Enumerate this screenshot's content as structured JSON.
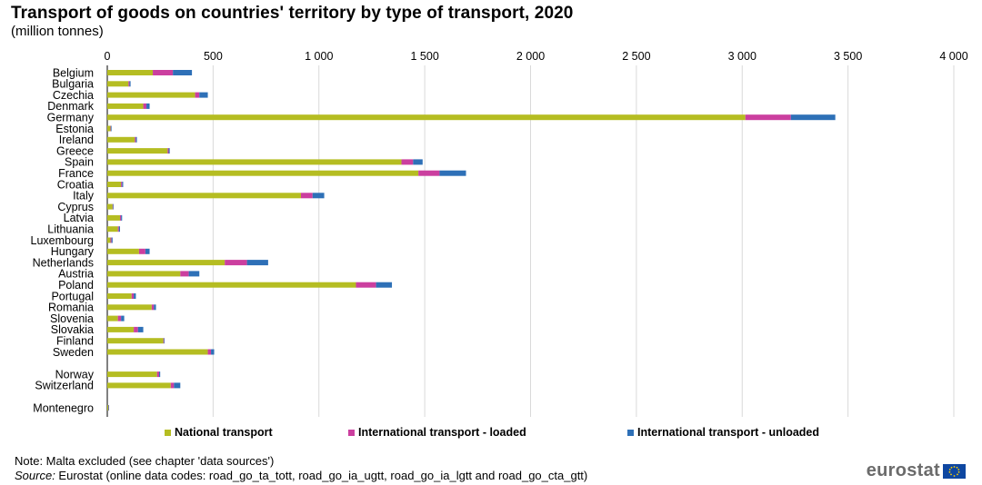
{
  "header": {
    "title": "Transport of goods on countries' territory by type of transport, 2020",
    "subtitle": "(million tonnes)"
  },
  "footer": {
    "note": "Note: Malta excluded (see chapter 'data sources')",
    "source_label": "Source:",
    "source_text": " Eurostat (online data codes: road_go_ta_tott, road_go_ia_ugtt, road_go_ia_lgtt and road_go_cta_gtt)",
    "brand": "eurostat",
    "flag_icon": "eu-flag-icon"
  },
  "chart_data": {
    "type": "bar",
    "orientation": "horizontal",
    "stacked": true,
    "grid": true,
    "legend_position": "bottom",
    "xlim": [
      0,
      4000
    ],
    "x_ticks": [
      0,
      500,
      1000,
      1500,
      2000,
      2500,
      3000,
      3500,
      4000
    ],
    "x_tick_labels": [
      "0",
      "500",
      "1 000",
      "1 500",
      "2 000",
      "2 500",
      "3 000",
      "3 500",
      "4 000"
    ],
    "categories": [
      "Belgium",
      "Bulgaria",
      "Czechia",
      "Denmark",
      "Germany",
      "Estonia",
      "Ireland",
      "Greece",
      "Spain",
      "France",
      "Croatia",
      "Italy",
      "Cyprus",
      "Latvia",
      "Lithuania",
      "Luxembourg",
      "Hungary",
      "Netherlands",
      "Austria",
      "Poland",
      "Portugal",
      "Romania",
      "Slovenia",
      "Slovakia",
      "Finland",
      "Sweden",
      "",
      "Norway",
      "Switzerland",
      "",
      "Montenegro"
    ],
    "series": [
      {
        "name": "National transport",
        "color": "#b5bd22",
        "values": [
          215,
          100,
          415,
          170,
          3015,
          15,
          130,
          285,
          1390,
          1470,
          65,
          915,
          25,
          60,
          50,
          15,
          150,
          555,
          345,
          1175,
          115,
          210,
          50,
          125,
          265,
          475,
          null,
          235,
          300,
          null,
          5
        ]
      },
      {
        "name": "International transport - loaded",
        "color": "#cb3f9f",
        "values": [
          95,
          5,
          20,
          15,
          215,
          2,
          5,
          5,
          55,
          100,
          5,
          55,
          2,
          5,
          5,
          5,
          30,
          105,
          40,
          95,
          10,
          10,
          15,
          20,
          3,
          15,
          null,
          10,
          15,
          null,
          1
        ]
      },
      {
        "name": "International transport - unloaded",
        "color": "#2e70b7",
        "values": [
          90,
          5,
          40,
          15,
          210,
          3,
          5,
          5,
          45,
          125,
          5,
          55,
          2,
          5,
          5,
          5,
          20,
          100,
          50,
          75,
          10,
          10,
          15,
          25,
          2,
          15,
          null,
          5,
          30,
          null,
          1
        ]
      }
    ]
  }
}
